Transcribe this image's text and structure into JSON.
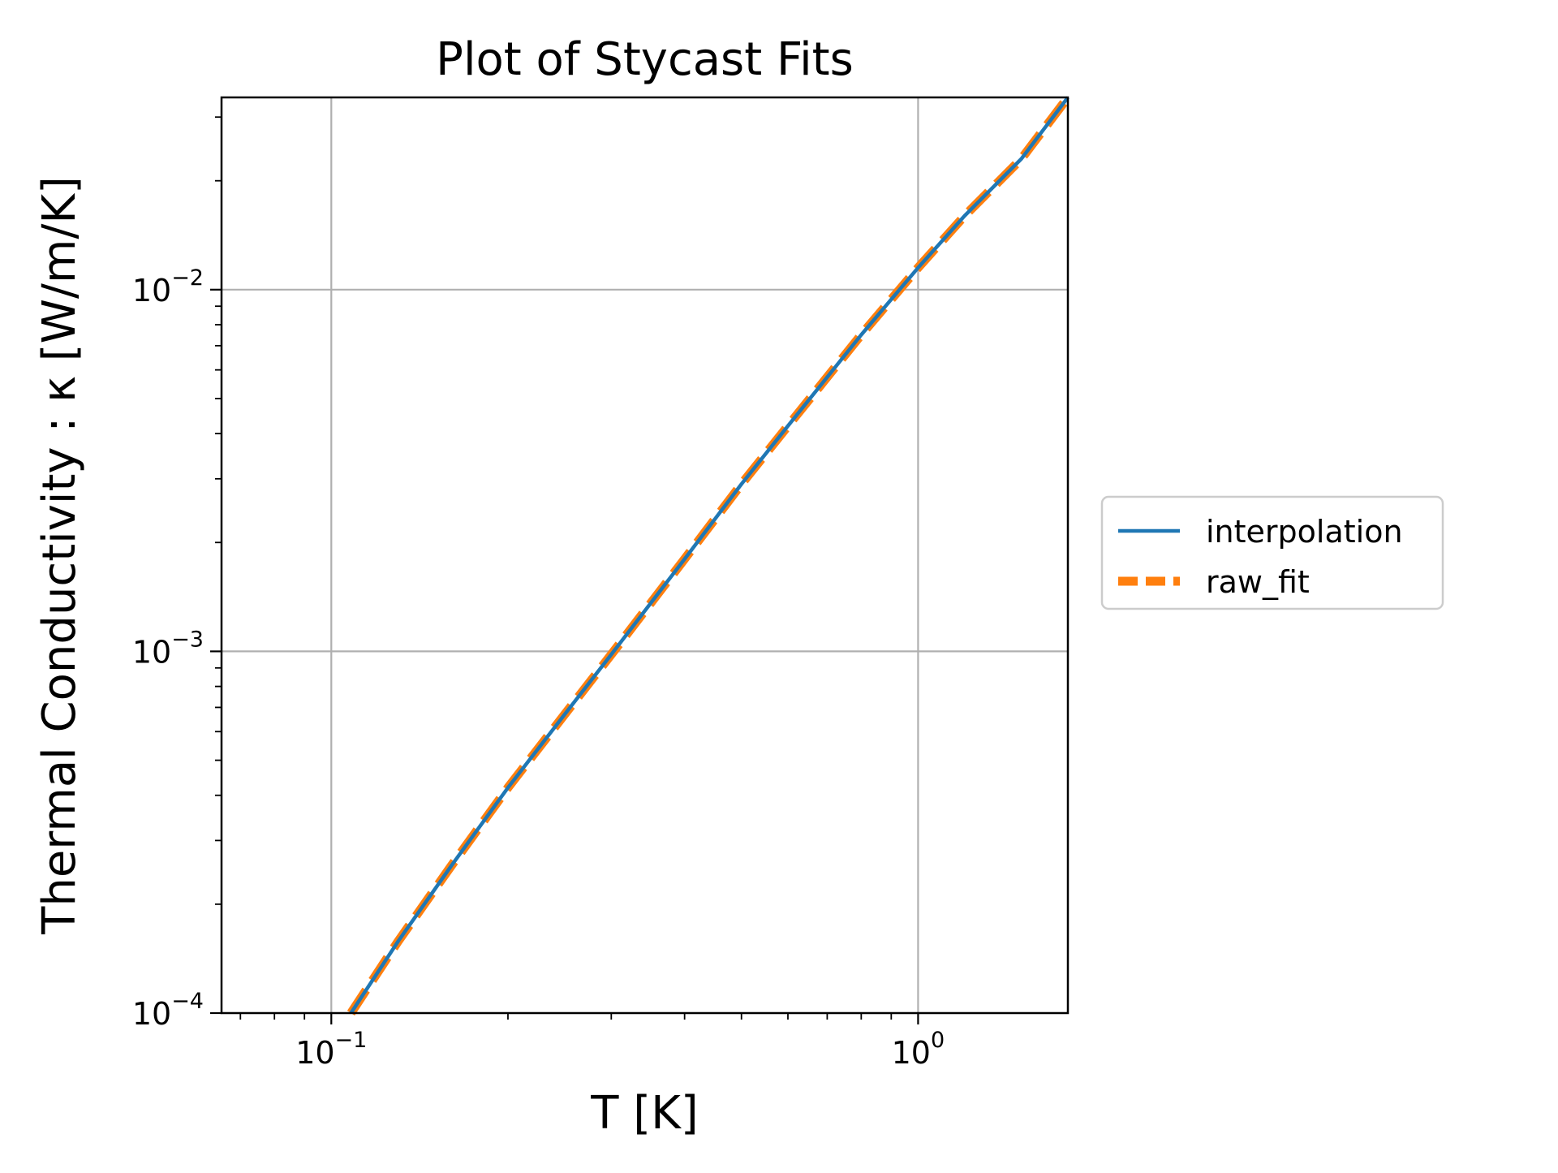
{
  "chart_data": {
    "type": "line",
    "title": "Plot of Stycast Fits",
    "xlabel": "T [K]",
    "ylabel": "Thermal Conductivity : κ [W/m/K]",
    "xscale": "log",
    "yscale": "log",
    "xlim": [
      0.065,
      1.8
    ],
    "ylim": [
      0.0001,
      0.034
    ],
    "grid": true,
    "legend_position": "right-outside",
    "x_ticks": [
      {
        "value": 0.1,
        "base": "10",
        "exp": "−1"
      },
      {
        "value": 1,
        "base": "10",
        "exp": "0"
      }
    ],
    "y_ticks": [
      {
        "value": 0.0001,
        "base": "10",
        "exp": "−4"
      },
      {
        "value": 0.001,
        "base": "10",
        "exp": "−3"
      },
      {
        "value": 0.01,
        "base": "10",
        "exp": "−2"
      }
    ],
    "series": [
      {
        "name": "interpolation",
        "color": "#1f77b4",
        "style": "solid",
        "x": [
          0.108,
          0.13,
          0.16,
          0.2,
          0.25,
          0.3,
          0.4,
          0.5,
          0.6,
          0.8,
          1.0,
          1.2,
          1.5,
          1.8
        ],
        "y": [
          0.0001,
          0.000158,
          0.000255,
          0.00042,
          0.00067,
          0.00098,
          0.0018,
          0.0029,
          0.0042,
          0.0075,
          0.0115,
          0.016,
          0.023,
          0.034
        ]
      },
      {
        "name": "raw_fit",
        "color": "#ff7f0e",
        "style": "dashed",
        "x": [
          0.108,
          0.13,
          0.16,
          0.2,
          0.25,
          0.3,
          0.4,
          0.5,
          0.6,
          0.8,
          1.0,
          1.2,
          1.5,
          1.8
        ],
        "y": [
          0.0001,
          0.000158,
          0.000255,
          0.00042,
          0.00067,
          0.00098,
          0.0018,
          0.0029,
          0.0042,
          0.0075,
          0.0115,
          0.016,
          0.023,
          0.034
        ]
      }
    ]
  }
}
